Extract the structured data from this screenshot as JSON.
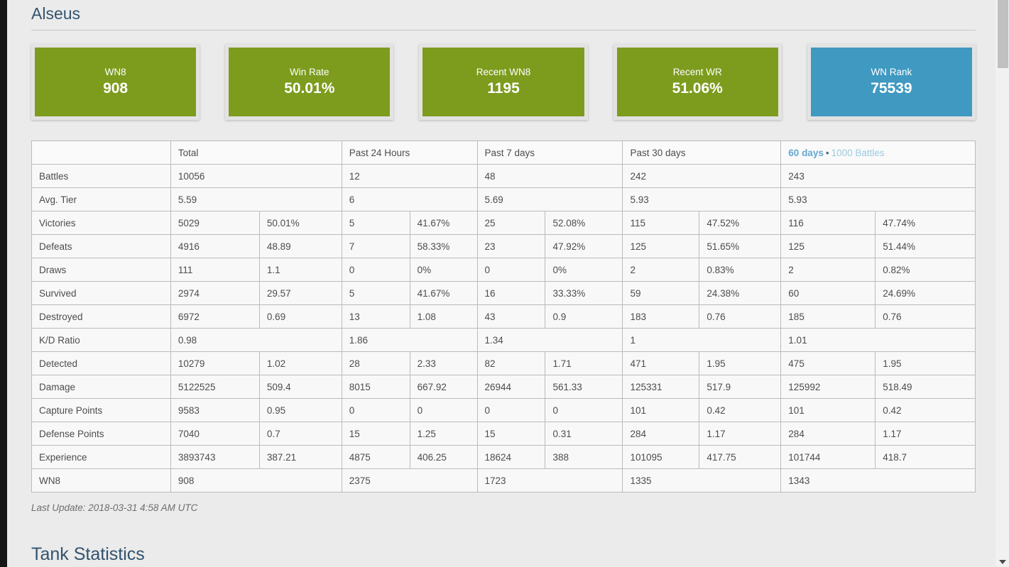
{
  "page": {
    "title": "Alseus",
    "tank_statistics_title": "Tank Statistics",
    "last_update": "Last Update: 2018-03-31 4:58 AM UTC"
  },
  "colors": {
    "positive_green": "#84ab35",
    "negative_red": "#ab3028",
    "neutral_blue": "#a6c9e2",
    "card_green": "#7d9c1e",
    "card_blue": "#3f99c1",
    "heading_blue": "#32536e"
  },
  "cards": [
    {
      "label": "WN8",
      "value": "908",
      "color": "#7d9c1e"
    },
    {
      "label": "Win Rate",
      "value": "50.01%",
      "color": "#7d9c1e"
    },
    {
      "label": "Recent WN8",
      "value": "1195",
      "color": "#7d9c1e"
    },
    {
      "label": "Recent WR",
      "value": "51.06%",
      "color": "#7d9c1e"
    },
    {
      "label": "WN Rank",
      "value": "75539",
      "color": "#3f99c1"
    }
  ],
  "table": {
    "headers": [
      "",
      "Total",
      "Past 24 Hours",
      "Past 7 days",
      "Past 30 days"
    ],
    "period_links": {
      "days": "60 days",
      "separator": "•",
      "battles": "1000 Battles"
    },
    "rows": [
      {
        "label": "Battles",
        "cells": [
          {
            "t": "10056",
            "span": 2
          },
          {
            "t": "12",
            "span": 2
          },
          {
            "t": "48",
            "span": 2
          },
          {
            "t": "242",
            "span": 2
          },
          {
            "t": "243",
            "span": 2
          }
        ]
      },
      {
        "label": "Avg. Tier",
        "cells": [
          {
            "t": "5.59",
            "span": 2
          },
          {
            "t": "6",
            "span": 2
          },
          {
            "t": "5.69",
            "span": 2
          },
          {
            "t": "5.93",
            "span": 2
          },
          {
            "t": "5.93",
            "span": 2
          }
        ]
      },
      {
        "label": "Victories",
        "cells": [
          {
            "t": "5029"
          },
          {
            "t": "50.01%",
            "c": "blue"
          },
          {
            "t": "5"
          },
          {
            "t": "41.67%",
            "c": "red"
          },
          {
            "t": "25"
          },
          {
            "t": "52.08%",
            "c": "green"
          },
          {
            "t": "115"
          },
          {
            "t": "47.52%",
            "c": "red"
          },
          {
            "t": "116"
          },
          {
            "t": "47.74%",
            "c": "red"
          }
        ]
      },
      {
        "label": "Defeats",
        "cells": [
          {
            "t": "4916"
          },
          {
            "t": "48.89"
          },
          {
            "t": "7"
          },
          {
            "t": "58.33%",
            "c": "red"
          },
          {
            "t": "23"
          },
          {
            "t": "47.92%",
            "c": "green"
          },
          {
            "t": "125"
          },
          {
            "t": "51.65%",
            "c": "red"
          },
          {
            "t": "125"
          },
          {
            "t": "51.44%",
            "c": "red"
          }
        ]
      },
      {
        "label": "Draws",
        "cells": [
          {
            "t": "111"
          },
          {
            "t": "1.1"
          },
          {
            "t": "0"
          },
          {
            "t": "0%",
            "c": "green"
          },
          {
            "t": "0"
          },
          {
            "t": "0%",
            "c": "green"
          },
          {
            "t": "2"
          },
          {
            "t": "0.83%",
            "c": "green"
          },
          {
            "t": "2"
          },
          {
            "t": "0.82%",
            "c": "green"
          }
        ]
      },
      {
        "label": "Survived",
        "cells": [
          {
            "t": "2974"
          },
          {
            "t": "29.57"
          },
          {
            "t": "5"
          },
          {
            "t": "41.67%",
            "c": "green"
          },
          {
            "t": "16"
          },
          {
            "t": "33.33%",
            "c": "green"
          },
          {
            "t": "59"
          },
          {
            "t": "24.38%",
            "c": "red"
          },
          {
            "t": "60"
          },
          {
            "t": "24.69%",
            "c": "red"
          }
        ]
      },
      {
        "label": "Destroyed",
        "cells": [
          {
            "t": "6972"
          },
          {
            "t": "0.69"
          },
          {
            "t": "13"
          },
          {
            "t": "1.08",
            "c": "green"
          },
          {
            "t": "43"
          },
          {
            "t": "0.9",
            "c": "green"
          },
          {
            "t": "183"
          },
          {
            "t": "0.76",
            "c": "green"
          },
          {
            "t": "185"
          },
          {
            "t": "0.76",
            "c": "green"
          }
        ]
      },
      {
        "label": "K/D Ratio",
        "cells": [
          {
            "t": "0.98",
            "span": 2
          },
          {
            "t": "1.86",
            "span": 2,
            "c": "green"
          },
          {
            "t": "1.34",
            "span": 2,
            "c": "green"
          },
          {
            "t": "1",
            "span": 2,
            "c": "green"
          },
          {
            "t": "1.01",
            "span": 2,
            "c": "green"
          }
        ]
      },
      {
        "label": "Detected",
        "cells": [
          {
            "t": "10279"
          },
          {
            "t": "1.02"
          },
          {
            "t": "28"
          },
          {
            "t": "2.33",
            "c": "green"
          },
          {
            "t": "82"
          },
          {
            "t": "1.71",
            "c": "green"
          },
          {
            "t": "471"
          },
          {
            "t": "1.95",
            "c": "green"
          },
          {
            "t": "475"
          },
          {
            "t": "1.95",
            "c": "green"
          }
        ]
      },
      {
        "label": "Damage",
        "cells": [
          {
            "t": "5122525"
          },
          {
            "t": "509.4"
          },
          {
            "t": "8015"
          },
          {
            "t": "667.92",
            "c": "green"
          },
          {
            "t": "26944"
          },
          {
            "t": "561.33",
            "c": "green"
          },
          {
            "t": "125331"
          },
          {
            "t": "517.9",
            "c": "green"
          },
          {
            "t": "125992"
          },
          {
            "t": "518.49",
            "c": "green"
          }
        ]
      },
      {
        "label": "Capture Points",
        "cells": [
          {
            "t": "9583"
          },
          {
            "t": "0.95"
          },
          {
            "t": "0"
          },
          {
            "t": "0",
            "c": "red"
          },
          {
            "t": "0"
          },
          {
            "t": "0",
            "c": "red"
          },
          {
            "t": "101"
          },
          {
            "t": "0.42",
            "c": "red"
          },
          {
            "t": "101"
          },
          {
            "t": "0.42",
            "c": "red"
          }
        ]
      },
      {
        "label": "Defense Points",
        "cells": [
          {
            "t": "7040"
          },
          {
            "t": "0.7"
          },
          {
            "t": "15"
          },
          {
            "t": "1.25",
            "c": "green"
          },
          {
            "t": "15"
          },
          {
            "t": "0.31",
            "c": "red"
          },
          {
            "t": "284"
          },
          {
            "t": "1.17",
            "c": "green"
          },
          {
            "t": "284"
          },
          {
            "t": "1.17",
            "c": "green"
          }
        ]
      },
      {
        "label": "Experience",
        "cells": [
          {
            "t": "3893743"
          },
          {
            "t": "387.21"
          },
          {
            "t": "4875"
          },
          {
            "t": "406.25",
            "c": "green"
          },
          {
            "t": "18624"
          },
          {
            "t": "388",
            "c": "green"
          },
          {
            "t": "101095"
          },
          {
            "t": "417.75",
            "c": "green"
          },
          {
            "t": "101744"
          },
          {
            "t": "418.7",
            "c": "green"
          }
        ]
      },
      {
        "label": "WN8",
        "cells": [
          {
            "t": "908",
            "span": 2
          },
          {
            "t": "2375",
            "span": 2
          },
          {
            "t": "1723",
            "span": 2
          },
          {
            "t": "1335",
            "span": 2
          },
          {
            "t": "1343",
            "span": 2
          }
        ]
      }
    ]
  }
}
